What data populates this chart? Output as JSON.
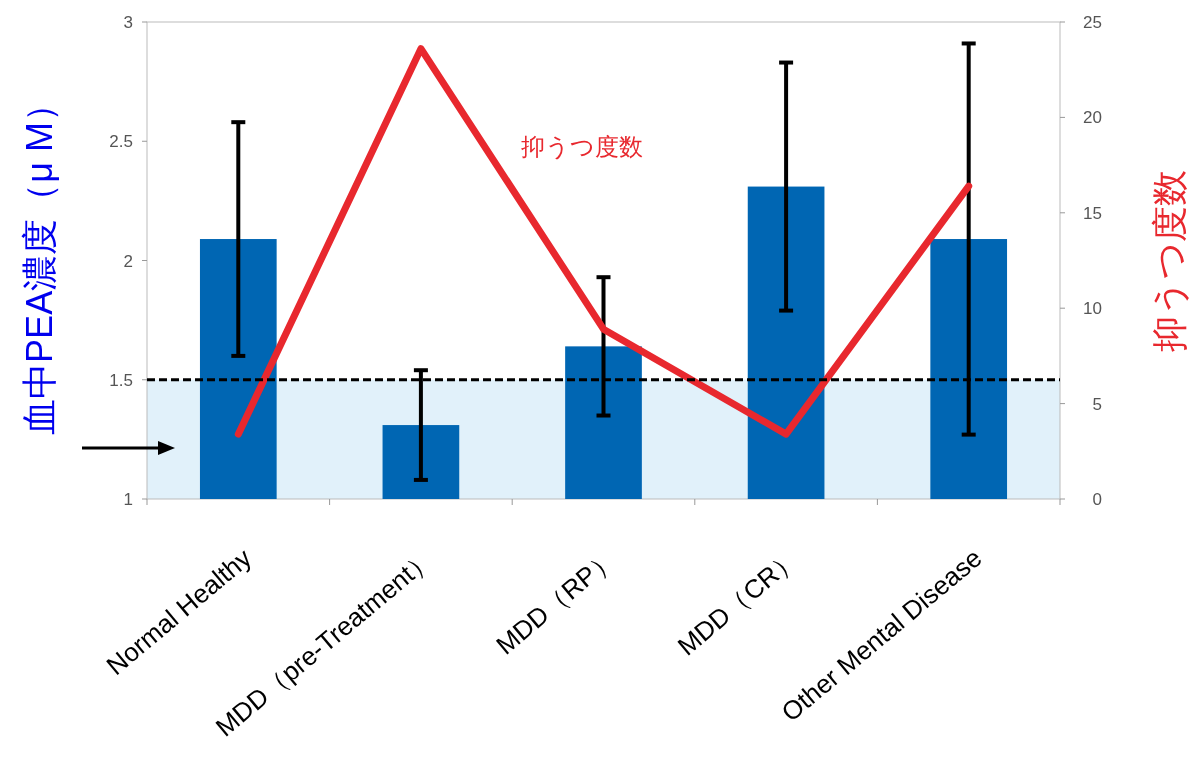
{
  "chart_data": {
    "type": "bar",
    "ylabel": "血中PEA濃度（μ M）",
    "y2label": "抑うつ度数",
    "categories": [
      "Normal Healthy",
      "MDD（pre-Treatment）",
      "MDD（RP）",
      "MDD（CR）",
      "Other Mental Disease"
    ],
    "series": [
      {
        "color": "#0066b3",
        "values": [
          2.09,
          1.31,
          1.64,
          2.31,
          2.09
        ],
        "errors": [
          0.49,
          0.23,
          0.29,
          0.52,
          0.82
        ]
      },
      {
        "type": "line",
        "name": "抑うつ度数",
        "color": "#e8282e",
        "axis": "y2",
        "values": [
          3.4,
          23.6,
          8.9,
          3.4,
          16.4
        ]
      }
    ],
    "ylim": [
      1,
      3
    ],
    "yticks": [
      1,
      1.5,
      2,
      2.5,
      3
    ],
    "y2lim": [
      0,
      25
    ],
    "y2ticks": [
      0,
      5,
      10,
      15,
      20,
      25
    ],
    "ref_lines": [
      {
        "axis": "y",
        "value": 1.5,
        "line_style": "dashed",
        "color": "#000000"
      }
    ],
    "bands": [
      {
        "axis": "y",
        "from": 1,
        "to": 1.5,
        "color": "#e1f1fa"
      }
    ],
    "grid": false
  }
}
